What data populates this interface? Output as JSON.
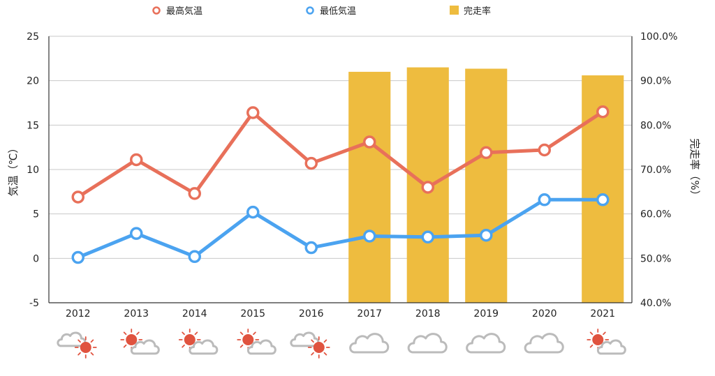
{
  "chart_data": {
    "type": "bar-line-combo",
    "categories": [
      "2012",
      "2013",
      "2014",
      "2015",
      "2016",
      "2017",
      "2018",
      "2019",
      "2020",
      "2021"
    ],
    "series": [
      {
        "name": "最高気温",
        "type": "line",
        "axis": "left",
        "color": "#E8705A",
        "values": [
          6.9,
          11.1,
          7.3,
          16.4,
          10.7,
          13.1,
          8.0,
          11.9,
          12.2,
          16.5
        ]
      },
      {
        "name": "最低気温",
        "type": "line",
        "axis": "left",
        "color": "#4BA3F0",
        "values": [
          0.1,
          2.8,
          0.2,
          5.2,
          1.2,
          2.5,
          2.4,
          2.6,
          6.6,
          6.6
        ]
      },
      {
        "name": "完走率",
        "type": "bar",
        "axis": "right",
        "color": "#EEBC3F",
        "values": [
          null,
          null,
          null,
          null,
          null,
          92.0,
          93.0,
          92.7,
          null,
          91.2
        ]
      }
    ],
    "ylabel": "気温（℃）",
    "ylabel_right": "完走率（%）",
    "ylim": [
      -5,
      25
    ],
    "yticks": [
      "25",
      "20",
      "15",
      "10",
      "5",
      "0",
      "-5"
    ],
    "ylim_right": [
      40,
      100
    ],
    "yticks_right": [
      "100.0%",
      "90.0%",
      "80.0%",
      "70.0%",
      "60.0%",
      "50.0%",
      "40.0%"
    ],
    "grid": true,
    "legend_position": "top",
    "weather_icons": [
      "cloudy-then-sunny",
      "sunny-then-cloudy",
      "sunny-then-cloudy",
      "sunny-then-cloudy",
      "cloudy-then-sunny",
      "cloudy",
      "cloudy",
      "cloudy",
      "cloudy",
      "sunny-then-cloudy"
    ]
  }
}
